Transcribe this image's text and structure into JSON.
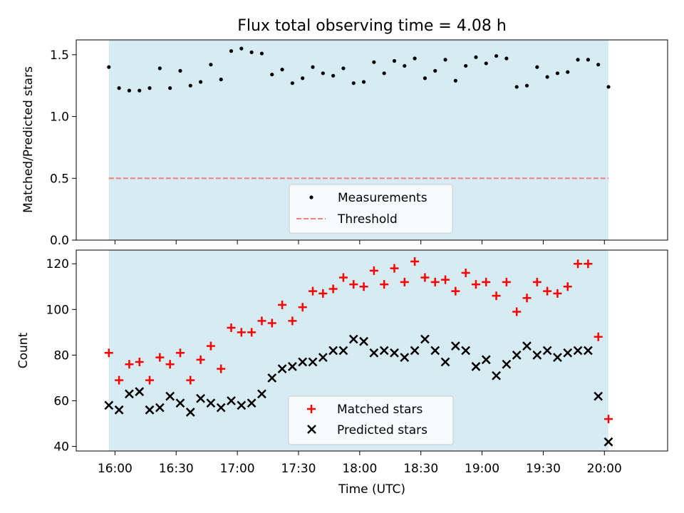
{
  "chart_data": [
    {
      "type": "scatter",
      "title": "Flux total observing time = 4.08 h",
      "xlabel": "",
      "ylabel": "Matched/Predicted stars",
      "ylim": [
        0,
        1.62
      ],
      "yticks": [
        0.0,
        0.5,
        1.0,
        1.5
      ],
      "ytick_labels": [
        "0.0",
        "0.5",
        "1.0",
        "1.5"
      ],
      "shaded_span": [
        "15:57",
        "20:02"
      ],
      "threshold": 0.5,
      "legend": [
        "Measurements",
        "Threshold"
      ],
      "legend_position": "bottom-center",
      "colors": {
        "measurement": "#000000",
        "threshold": "#f08080",
        "span": "#add8e6"
      },
      "series": [
        {
          "name": "Measurements",
          "x": [
            "15:57",
            "16:02",
            "16:07",
            "16:12",
            "16:17",
            "16:22",
            "16:27",
            "16:32",
            "16:37",
            "16:42",
            "16:47",
            "16:52",
            "16:57",
            "17:02",
            "17:07",
            "17:12",
            "17:17",
            "17:22",
            "17:27",
            "17:32",
            "17:37",
            "17:42",
            "17:47",
            "17:52",
            "17:57",
            "18:02",
            "18:07",
            "18:12",
            "18:17",
            "18:22",
            "18:27",
            "18:32",
            "18:37",
            "18:42",
            "18:47",
            "18:52",
            "18:57",
            "19:02",
            "19:07",
            "19:12",
            "19:17",
            "19:22",
            "19:27",
            "19:32",
            "19:37",
            "19:42",
            "19:47",
            "19:52",
            "19:57",
            "20:02"
          ],
          "y": [
            1.4,
            1.23,
            1.21,
            1.21,
            1.23,
            1.39,
            1.23,
            1.37,
            1.25,
            1.28,
            1.42,
            1.3,
            1.53,
            1.55,
            1.52,
            1.51,
            1.34,
            1.38,
            1.27,
            1.31,
            1.4,
            1.35,
            1.33,
            1.39,
            1.27,
            1.28,
            1.44,
            1.35,
            1.45,
            1.41,
            1.47,
            1.31,
            1.37,
            1.46,
            1.29,
            1.41,
            1.48,
            1.43,
            1.49,
            1.47,
            1.24,
            1.25,
            1.4,
            1.32,
            1.35,
            1.36,
            1.46,
            1.46,
            1.42,
            1.24
          ]
        },
        {
          "name": "Threshold",
          "x": [
            "15:57",
            "20:02"
          ],
          "y": [
            0.5,
            0.5
          ]
        }
      ]
    },
    {
      "type": "scatter",
      "title": "",
      "xlabel": "Time (UTC)",
      "ylabel": "Count",
      "ylim": [
        38,
        126
      ],
      "yticks": [
        40,
        60,
        80,
        100,
        120
      ],
      "ytick_labels": [
        "40",
        "60",
        "80",
        "100",
        "120"
      ],
      "xlim": [
        "15:41",
        "20:31"
      ],
      "xticks": [
        "16:00",
        "16:30",
        "17:00",
        "17:30",
        "18:00",
        "18:30",
        "19:00",
        "19:30",
        "20:00"
      ],
      "xtick_labels": [
        "16:00",
        "16:30",
        "17:00",
        "17:30",
        "18:00",
        "18:30",
        "19:00",
        "19:30",
        "20:00"
      ],
      "shaded_span": [
        "15:57",
        "20:02"
      ],
      "legend": [
        "Matched stars",
        "Predicted stars"
      ],
      "legend_position": "bottom-center",
      "colors": {
        "matched": "#ff0000",
        "predicted": "#000000",
        "span": "#add8e6"
      },
      "series": [
        {
          "name": "Matched stars",
          "x": [
            "15:57",
            "16:02",
            "16:07",
            "16:12",
            "16:17",
            "16:22",
            "16:27",
            "16:32",
            "16:37",
            "16:42",
            "16:47",
            "16:52",
            "16:57",
            "17:02",
            "17:07",
            "17:12",
            "17:17",
            "17:22",
            "17:27",
            "17:32",
            "17:37",
            "17:42",
            "17:47",
            "17:52",
            "17:57",
            "18:02",
            "18:07",
            "18:12",
            "18:17",
            "18:22",
            "18:27",
            "18:32",
            "18:37",
            "18:42",
            "18:47",
            "18:52",
            "18:57",
            "19:02",
            "19:07",
            "19:12",
            "19:17",
            "19:22",
            "19:27",
            "19:32",
            "19:37",
            "19:42",
            "19:47",
            "19:52",
            "19:57",
            "20:02"
          ],
          "y": [
            81,
            69,
            76,
            77,
            69,
            79,
            76,
            81,
            69,
            78,
            84,
            74,
            92,
            90,
            90,
            95,
            94,
            102,
            95,
            101,
            108,
            107,
            109,
            114,
            111,
            110,
            117,
            111,
            118,
            112,
            121,
            114,
            112,
            113,
            108,
            116,
            111,
            112,
            106,
            112,
            99,
            105,
            112,
            108,
            107,
            110,
            120,
            120,
            88,
            52
          ]
        },
        {
          "name": "Predicted stars",
          "x": [
            "15:57",
            "16:02",
            "16:07",
            "16:12",
            "16:17",
            "16:22",
            "16:27",
            "16:32",
            "16:37",
            "16:42",
            "16:47",
            "16:52",
            "16:57",
            "17:02",
            "17:07",
            "17:12",
            "17:17",
            "17:22",
            "17:27",
            "17:32",
            "17:37",
            "17:42",
            "17:47",
            "17:52",
            "17:57",
            "18:02",
            "18:07",
            "18:12",
            "18:17",
            "18:22",
            "18:27",
            "18:32",
            "18:37",
            "18:42",
            "18:47",
            "18:52",
            "18:57",
            "19:02",
            "19:07",
            "19:12",
            "19:17",
            "19:22",
            "19:27",
            "19:32",
            "19:37",
            "19:42",
            "19:47",
            "19:52",
            "19:57",
            "20:02"
          ],
          "y": [
            58,
            56,
            63,
            64,
            56,
            57,
            62,
            59,
            55,
            61,
            59,
            57,
            60,
            58,
            59,
            63,
            70,
            74,
            75,
            77,
            77,
            79,
            82,
            82,
            87,
            86,
            81,
            82,
            81,
            79,
            82,
            87,
            82,
            77,
            84,
            82,
            75,
            78,
            71,
            76,
            80,
            84,
            80,
            82,
            79,
            81,
            82,
            82,
            62,
            42
          ]
        }
      ]
    }
  ]
}
